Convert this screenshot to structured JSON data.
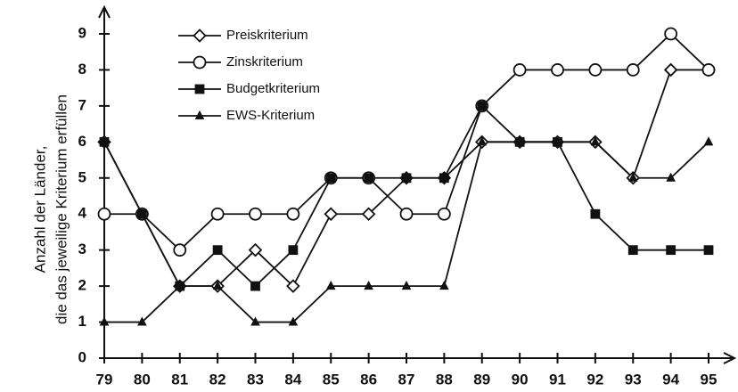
{
  "chart_data": {
    "type": "line",
    "ylabel": [
      "Anzahl der Länder,",
      "die das jeweilige Kriterium erfüllen"
    ],
    "categories": [
      "79",
      "80",
      "81",
      "82",
      "83",
      "84",
      "85",
      "86",
      "87",
      "88",
      "89",
      "90",
      "91",
      "92",
      "93",
      "94",
      "95"
    ],
    "ylim": [
      0,
      9
    ],
    "yticks": [
      0,
      1,
      2,
      3,
      4,
      5,
      6,
      7,
      8,
      9
    ],
    "series": [
      {
        "name": "Preiskriterium",
        "color": "#111111",
        "marker": "diamond",
        "values": [
          6,
          4,
          2,
          2,
          3,
          2,
          4,
          4,
          5,
          5,
          6,
          6,
          6,
          6,
          5,
          8,
          8
        ]
      },
      {
        "name": "Zinskriterium",
        "color": "#111111",
        "marker": "circle",
        "values": [
          4,
          4,
          3,
          4,
          4,
          4,
          5,
          5,
          4,
          4,
          7,
          8,
          8,
          8,
          8,
          9,
          8
        ]
      },
      {
        "name": "Budgetkriterium",
        "color": "#111111",
        "marker": "square",
        "values": [
          6,
          4,
          2,
          3,
          2,
          3,
          5,
          5,
          5,
          5,
          7,
          6,
          6,
          4,
          3,
          3,
          3
        ]
      },
      {
        "name": "EWS-Kriterium",
        "color": "#111111",
        "marker": "triangle",
        "values": [
          1,
          1,
          2,
          2,
          1,
          1,
          2,
          2,
          2,
          2,
          6,
          6,
          6,
          6,
          5,
          5,
          6
        ]
      }
    ]
  }
}
